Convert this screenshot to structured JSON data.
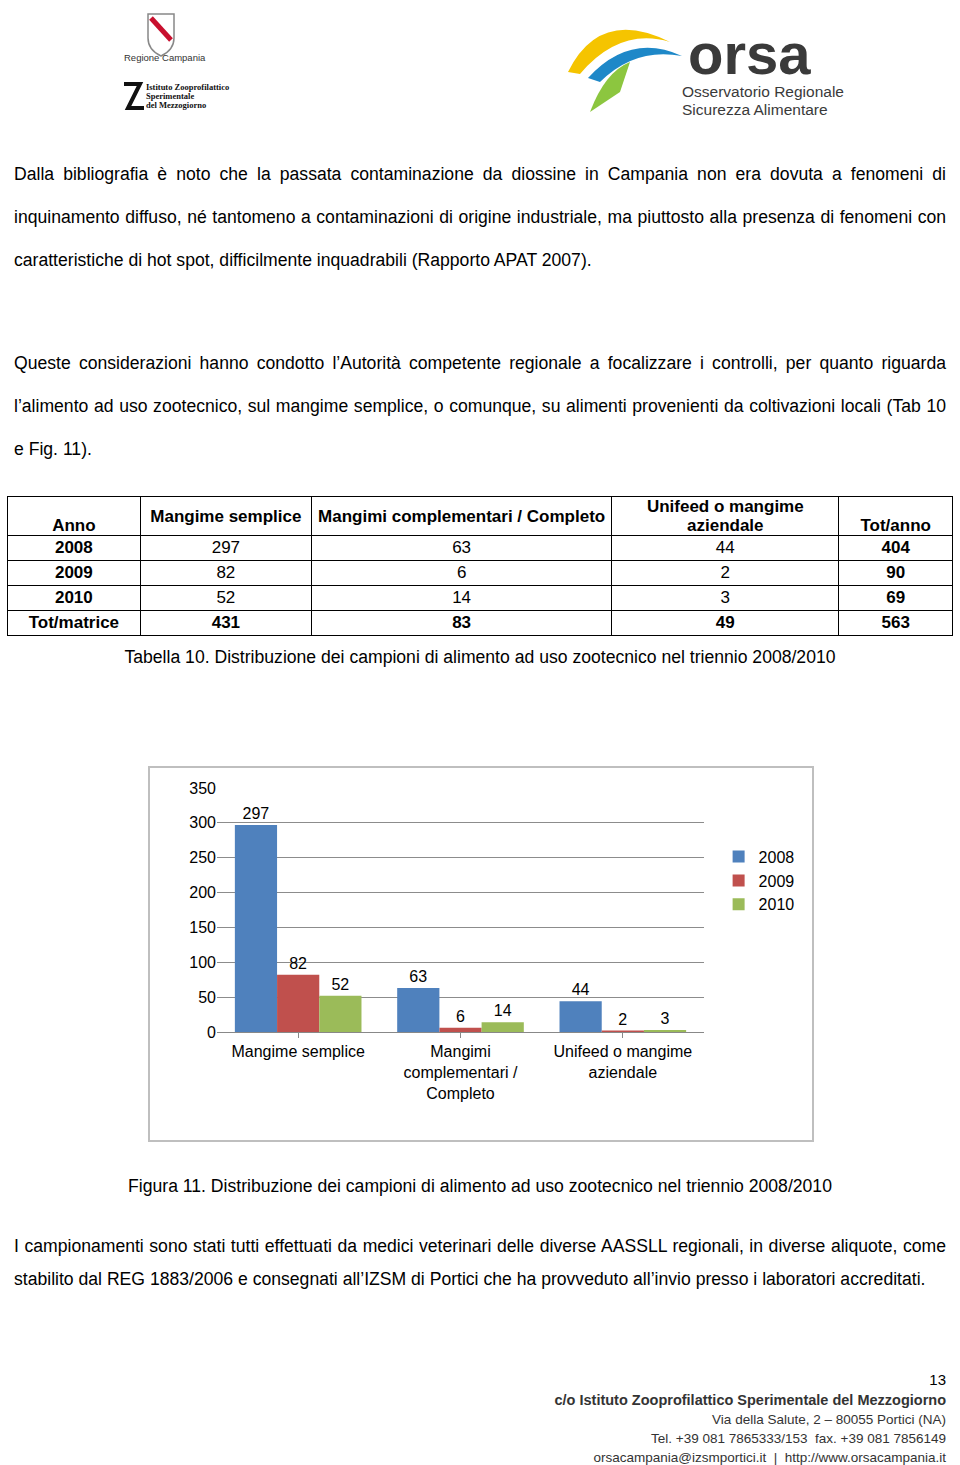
{
  "header": {
    "left_logo": {
      "region": "Regione Campania",
      "institute": [
        "Istituto Zooprofilattico",
        "Sperimentale",
        "del Mezzogiorno"
      ]
    },
    "right_logo": {
      "name": "orsa",
      "lines": [
        "Osservatorio Regionale",
        "Sicurezza Alimentare"
      ]
    }
  },
  "paragraphs_before": [
    "Dalla bibliografia è noto che la passata contaminazione da diossine in Campania non era dovuta a fenomeni di inquinamento diffuso, né tantomeno a contaminazioni di origine industriale, ma piuttosto alla presenza di fenomeni con caratteristiche di hot spot, difficilmente inquadrabili (Rapporto APAT 2007).",
    "Queste considerazioni hanno condotto l’Autorità competente regionale a focalizzare i controlli, per quanto riguarda l’alimento ad uso zootecnico, sul mangime semplice, o comunque, su alimenti provenienti da coltivazioni locali (Tab 10 e Fig. 11)."
  ],
  "table": {
    "header": [
      "Anno",
      "Mangime semplice",
      "Mangimi complementari / Completo",
      "Unifeed o mangime aziendale",
      "Tot/anno"
    ],
    "rows": [
      [
        2008,
        297,
        63,
        44,
        404
      ],
      [
        2009,
        82,
        6,
        2,
        90
      ],
      [
        2010,
        52,
        14,
        3,
        69
      ],
      [
        "Tot/matrice",
        431,
        83,
        49,
        563
      ]
    ],
    "caption": "Tabella 10. Distribuzione dei campioni di alimento ad uso zootecnico nel triennio 2008/2010"
  },
  "chart_data": {
    "type": "bar",
    "categories": [
      "Mangime semplice",
      "Mangimi complementari / Completo",
      "Unifeed o mangime aziendale"
    ],
    "series": [
      {
        "name": "2008",
        "color": "#4f81bd",
        "values": [
          297,
          63,
          44
        ]
      },
      {
        "name": "2009",
        "color": "#c0504d",
        "values": [
          82,
          6,
          2
        ]
      },
      {
        "name": "2010",
        "color": "#9bbb59",
        "values": [
          52,
          14,
          3
        ]
      }
    ],
    "ylim": [
      0,
      350
    ],
    "yticks": [
      0,
      50,
      100,
      150,
      200,
      250,
      300,
      350
    ],
    "grid": true,
    "data_labels": true,
    "legend": "right"
  },
  "figure_caption": "Figura 11. Distribuzione dei campioni di alimento ad uso zootecnico nel triennio 2008/2010",
  "paragraphs_after": [
    "I campionamenti sono stati tutti effettuati da medici veterinari delle diverse AASSLL regionali, in diverse aliquote, come stabilito dal REG 1883/2006 e consegnati all’IZSM di Portici che ha provveduto all’invio presso i laboratori accreditati."
  ],
  "footer": {
    "page": 13,
    "lines": [
      "c/o Istituto Zooprofilattico Sperimentale del Mezzogiorno",
      "Via della Salute, 2 – 80055 Portici (NA)",
      "Tel. +39 081 7865333/153  fax. +39 081 7856149",
      "orsacampania@izsmportici.it  |  http://www.orsacampania.it"
    ]
  }
}
